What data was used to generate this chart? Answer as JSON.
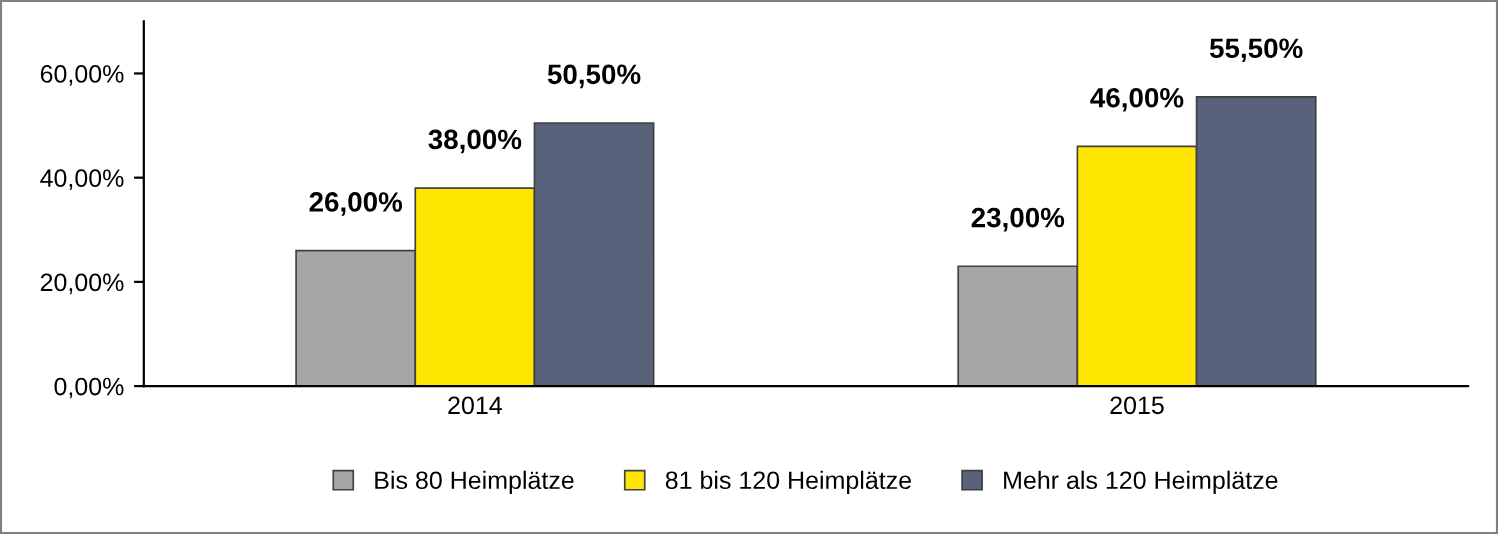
{
  "chart_data": {
    "type": "bar",
    "categories": [
      "2014",
      "2015"
    ],
    "series": [
      {
        "name": "Bis 80 Heimplätze",
        "color": "#a6a6a6",
        "values": [
          26.0,
          23.0
        ],
        "value_labels": [
          "26,00%",
          "23,00%"
        ]
      },
      {
        "name": "81 bis 120 Heimplätze",
        "color": "#ffe600",
        "values": [
          38.0,
          46.0
        ],
        "value_labels": [
          "38,00%",
          "46,00%"
        ]
      },
      {
        "name": "Mehr als 120 Heimplätze",
        "color": "#58627a",
        "values": [
          50.5,
          55.5
        ],
        "value_labels": [
          "50,50%",
          "55,50%"
        ]
      }
    ],
    "ylim": [
      0,
      70
    ],
    "yticks": [
      {
        "value": 0,
        "label": "0,00%"
      },
      {
        "value": 20,
        "label": "20,00%"
      },
      {
        "value": 40,
        "label": "40,00%"
      },
      {
        "value": 60,
        "label": "60,00%"
      }
    ],
    "grid": false,
    "legend": "bottom"
  }
}
